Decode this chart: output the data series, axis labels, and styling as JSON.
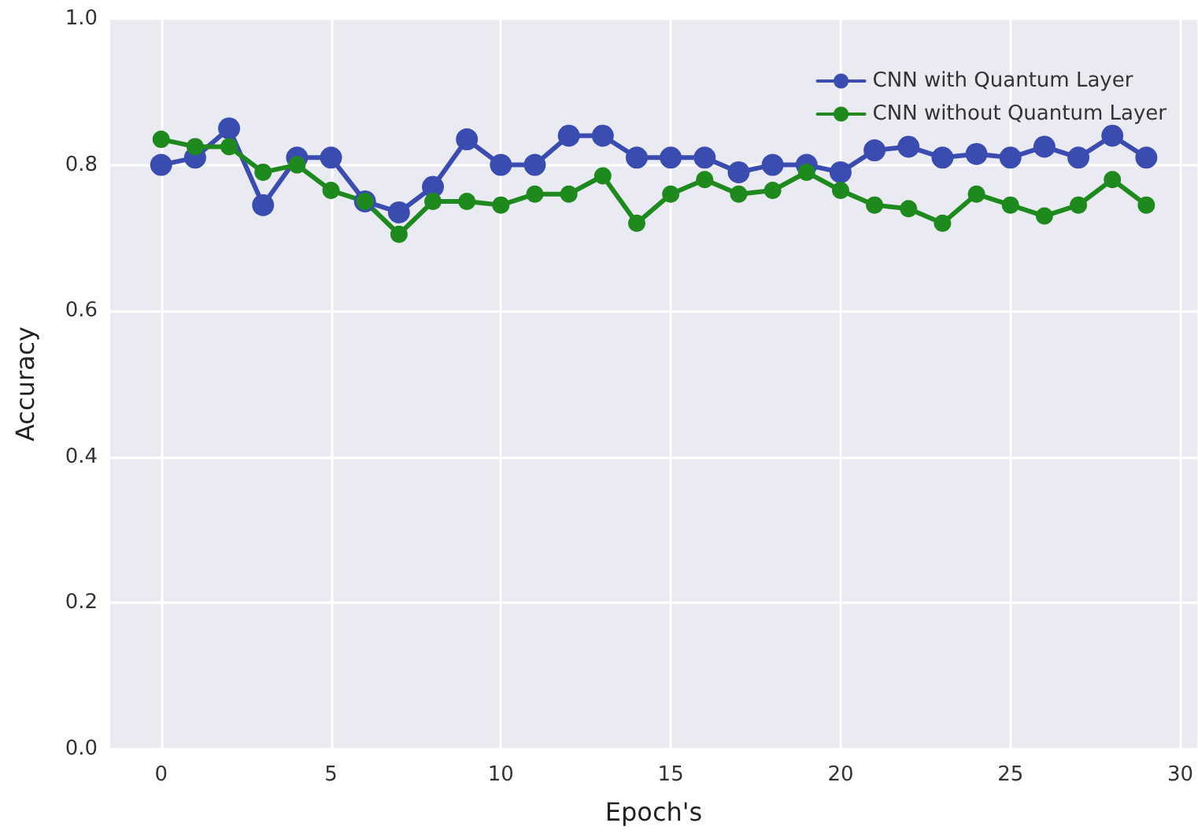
{
  "chart_data": {
    "type": "line",
    "xlabel": "Epoch's",
    "ylabel": "Accuracy",
    "x": [
      0,
      1,
      2,
      3,
      4,
      5,
      6,
      7,
      8,
      9,
      10,
      11,
      12,
      13,
      14,
      15,
      16,
      17,
      18,
      19,
      20,
      21,
      22,
      23,
      24,
      25,
      26,
      27,
      28,
      29
    ],
    "series": [
      {
        "name": "CNN with Quantum Layer",
        "color": "#3a4cb0",
        "values": [
          0.8,
          0.81,
          0.85,
          0.745,
          0.81,
          0.81,
          0.75,
          0.735,
          0.77,
          0.835,
          0.8,
          0.8,
          0.84,
          0.84,
          0.81,
          0.81,
          0.81,
          0.79,
          0.8,
          0.8,
          0.79,
          0.82,
          0.825,
          0.81,
          0.815,
          0.81,
          0.825,
          0.81,
          0.84,
          0.81
        ]
      },
      {
        "name": "CNN without Quantum Layer",
        "color": "#1e8a1e",
        "values": [
          0.835,
          0.825,
          0.825,
          0.79,
          0.8,
          0.765,
          0.75,
          0.705,
          0.75,
          0.75,
          0.745,
          0.76,
          0.76,
          0.785,
          0.72,
          0.76,
          0.78,
          0.76,
          0.765,
          0.79,
          0.765,
          0.745,
          0.74,
          0.72,
          0.76,
          0.745,
          0.73,
          0.745,
          0.78,
          0.745
        ]
      }
    ],
    "xlim": [
      -1.5,
      30.5
    ],
    "xticks": [
      0,
      5,
      10,
      15,
      20,
      25,
      30
    ],
    "ylim": [
      0,
      1.0
    ],
    "yticks": [
      {
        "value": 0,
        "label": "0.0"
      },
      {
        "value": 0.2,
        "label": "0.2"
      },
      {
        "value": 0.4,
        "label": "0.4"
      },
      {
        "value": 0.6,
        "label": "0.6"
      },
      {
        "value": 0.8,
        "label": "0.8"
      },
      {
        "value": 1.0,
        "label": "1.0"
      }
    ],
    "grid": true,
    "legend": "top right",
    "marker": "circle",
    "line_style": "solid"
  }
}
